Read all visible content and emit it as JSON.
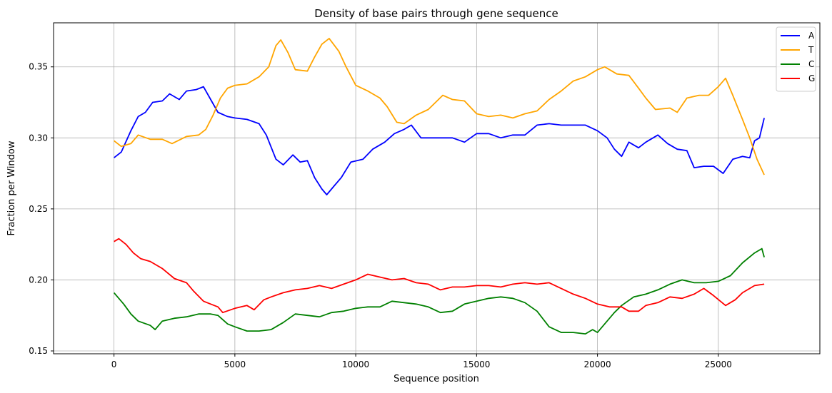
{
  "chart_data": {
    "type": "line",
    "title": "Density of base pairs through gene sequence",
    "xlabel": "Sequence position",
    "ylabel": "Fraction per Window",
    "xlim": [
      -2500,
      29200
    ],
    "ylim": [
      0.148,
      0.381
    ],
    "xticks": [
      0,
      5000,
      10000,
      15000,
      20000,
      25000
    ],
    "xtick_labels": [
      "0",
      "5000",
      "10000",
      "15000",
      "20000",
      "25000"
    ],
    "yticks": [
      0.15,
      0.2,
      0.25,
      0.3,
      0.35
    ],
    "ytick_labels": [
      "0.15",
      "0.20",
      "0.25",
      "0.30",
      "0.35"
    ],
    "grid": true,
    "legend_position": "top-right",
    "series": [
      {
        "name": "A",
        "color": "#0000ff",
        "points": [
          [
            0,
            0.286
          ],
          [
            300,
            0.29
          ],
          [
            700,
            0.305
          ],
          [
            1000,
            0.315
          ],
          [
            1300,
            0.318
          ],
          [
            1600,
            0.325
          ],
          [
            2000,
            0.326
          ],
          [
            2300,
            0.331
          ],
          [
            2700,
            0.327
          ],
          [
            3000,
            0.333
          ],
          [
            3400,
            0.334
          ],
          [
            3700,
            0.336
          ],
          [
            4000,
            0.327
          ],
          [
            4300,
            0.318
          ],
          [
            4700,
            0.315
          ],
          [
            5000,
            0.314
          ],
          [
            5500,
            0.313
          ],
          [
            6000,
            0.31
          ],
          [
            6300,
            0.302
          ],
          [
            6700,
            0.285
          ],
          [
            7000,
            0.281
          ],
          [
            7400,
            0.288
          ],
          [
            7700,
            0.283
          ],
          [
            8000,
            0.284
          ],
          [
            8300,
            0.272
          ],
          [
            8600,
            0.264
          ],
          [
            8800,
            0.26
          ],
          [
            9100,
            0.266
          ],
          [
            9400,
            0.272
          ],
          [
            9800,
            0.283
          ],
          [
            10300,
            0.285
          ],
          [
            10700,
            0.292
          ],
          [
            11200,
            0.297
          ],
          [
            11600,
            0.303
          ],
          [
            12000,
            0.306
          ],
          [
            12300,
            0.309
          ],
          [
            12700,
            0.3
          ],
          [
            13300,
            0.3
          ],
          [
            14000,
            0.3
          ],
          [
            14500,
            0.297
          ],
          [
            15000,
            0.303
          ],
          [
            15500,
            0.303
          ],
          [
            16000,
            0.3
          ],
          [
            16500,
            0.302
          ],
          [
            17000,
            0.302
          ],
          [
            17500,
            0.309
          ],
          [
            18000,
            0.31
          ],
          [
            18500,
            0.309
          ],
          [
            19000,
            0.309
          ],
          [
            19500,
            0.309
          ],
          [
            20000,
            0.305
          ],
          [
            20400,
            0.3
          ],
          [
            20700,
            0.292
          ],
          [
            21000,
            0.287
          ],
          [
            21300,
            0.297
          ],
          [
            21700,
            0.293
          ],
          [
            22000,
            0.297
          ],
          [
            22500,
            0.302
          ],
          [
            22900,
            0.296
          ],
          [
            23300,
            0.292
          ],
          [
            23700,
            0.291
          ],
          [
            24000,
            0.279
          ],
          [
            24400,
            0.28
          ],
          [
            24800,
            0.28
          ],
          [
            25200,
            0.275
          ],
          [
            25600,
            0.285
          ],
          [
            26000,
            0.287
          ],
          [
            26300,
            0.286
          ],
          [
            26500,
            0.298
          ],
          [
            26700,
            0.3
          ],
          [
            26900,
            0.314
          ]
        ]
      },
      {
        "name": "T",
        "color": "#ffa500",
        "points": [
          [
            0,
            0.298
          ],
          [
            300,
            0.294
          ],
          [
            700,
            0.296
          ],
          [
            1000,
            0.302
          ],
          [
            1500,
            0.299
          ],
          [
            2000,
            0.299
          ],
          [
            2400,
            0.296
          ],
          [
            3000,
            0.301
          ],
          [
            3500,
            0.302
          ],
          [
            3800,
            0.306
          ],
          [
            4100,
            0.316
          ],
          [
            4400,
            0.328
          ],
          [
            4700,
            0.335
          ],
          [
            5000,
            0.337
          ],
          [
            5500,
            0.338
          ],
          [
            6000,
            0.343
          ],
          [
            6400,
            0.35
          ],
          [
            6700,
            0.365
          ],
          [
            6900,
            0.369
          ],
          [
            7200,
            0.36
          ],
          [
            7500,
            0.348
          ],
          [
            8000,
            0.347
          ],
          [
            8300,
            0.357
          ],
          [
            8600,
            0.366
          ],
          [
            8900,
            0.37
          ],
          [
            9300,
            0.361
          ],
          [
            9600,
            0.35
          ],
          [
            10000,
            0.337
          ],
          [
            10500,
            0.333
          ],
          [
            11000,
            0.328
          ],
          [
            11300,
            0.322
          ],
          [
            11700,
            0.311
          ],
          [
            12000,
            0.31
          ],
          [
            12500,
            0.316
          ],
          [
            13000,
            0.32
          ],
          [
            13600,
            0.33
          ],
          [
            14000,
            0.327
          ],
          [
            14500,
            0.326
          ],
          [
            15000,
            0.317
          ],
          [
            15500,
            0.315
          ],
          [
            16000,
            0.316
          ],
          [
            16500,
            0.314
          ],
          [
            17000,
            0.317
          ],
          [
            17500,
            0.319
          ],
          [
            18000,
            0.327
          ],
          [
            18500,
            0.333
          ],
          [
            19000,
            0.34
          ],
          [
            19500,
            0.343
          ],
          [
            20000,
            0.348
          ],
          [
            20300,
            0.35
          ],
          [
            20800,
            0.345
          ],
          [
            21300,
            0.344
          ],
          [
            21700,
            0.335
          ],
          [
            22000,
            0.328
          ],
          [
            22400,
            0.32
          ],
          [
            23000,
            0.321
          ],
          [
            23300,
            0.318
          ],
          [
            23700,
            0.328
          ],
          [
            24200,
            0.33
          ],
          [
            24600,
            0.33
          ],
          [
            25000,
            0.336
          ],
          [
            25300,
            0.342
          ],
          [
            25600,
            0.33
          ],
          [
            26000,
            0.313
          ],
          [
            26300,
            0.3
          ],
          [
            26600,
            0.285
          ],
          [
            26900,
            0.274
          ]
        ]
      },
      {
        "name": "C",
        "color": "#008000",
        "points": [
          [
            0,
            0.191
          ],
          [
            400,
            0.183
          ],
          [
            700,
            0.176
          ],
          [
            1000,
            0.171
          ],
          [
            1500,
            0.168
          ],
          [
            1700,
            0.165
          ],
          [
            2000,
            0.171
          ],
          [
            2500,
            0.173
          ],
          [
            3000,
            0.174
          ],
          [
            3500,
            0.176
          ],
          [
            4000,
            0.176
          ],
          [
            4300,
            0.175
          ],
          [
            4700,
            0.169
          ],
          [
            5000,
            0.167
          ],
          [
            5500,
            0.164
          ],
          [
            6000,
            0.164
          ],
          [
            6500,
            0.165
          ],
          [
            7000,
            0.17
          ],
          [
            7500,
            0.176
          ],
          [
            8000,
            0.175
          ],
          [
            8500,
            0.174
          ],
          [
            9000,
            0.177
          ],
          [
            9500,
            0.178
          ],
          [
            10000,
            0.18
          ],
          [
            10500,
            0.181
          ],
          [
            11000,
            0.181
          ],
          [
            11500,
            0.185
          ],
          [
            12000,
            0.184
          ],
          [
            12500,
            0.183
          ],
          [
            13000,
            0.181
          ],
          [
            13500,
            0.177
          ],
          [
            14000,
            0.178
          ],
          [
            14500,
            0.183
          ],
          [
            15000,
            0.185
          ],
          [
            15500,
            0.187
          ],
          [
            16000,
            0.188
          ],
          [
            16500,
            0.187
          ],
          [
            17000,
            0.184
          ],
          [
            17500,
            0.178
          ],
          [
            18000,
            0.167
          ],
          [
            18500,
            0.163
          ],
          [
            19000,
            0.163
          ],
          [
            19500,
            0.162
          ],
          [
            19800,
            0.165
          ],
          [
            20000,
            0.163
          ],
          [
            20300,
            0.169
          ],
          [
            20700,
            0.177
          ],
          [
            21000,
            0.182
          ],
          [
            21500,
            0.188
          ],
          [
            22000,
            0.19
          ],
          [
            22500,
            0.193
          ],
          [
            23000,
            0.197
          ],
          [
            23500,
            0.2
          ],
          [
            24000,
            0.198
          ],
          [
            24500,
            0.198
          ],
          [
            25000,
            0.199
          ],
          [
            25500,
            0.203
          ],
          [
            26000,
            0.212
          ],
          [
            26500,
            0.219
          ],
          [
            26800,
            0.222
          ],
          [
            26900,
            0.216
          ]
        ]
      },
      {
        "name": "G",
        "color": "#ff0000",
        "points": [
          [
            0,
            0.227
          ],
          [
            200,
            0.229
          ],
          [
            500,
            0.225
          ],
          [
            800,
            0.219
          ],
          [
            1100,
            0.215
          ],
          [
            1500,
            0.213
          ],
          [
            2000,
            0.208
          ],
          [
            2500,
            0.201
          ],
          [
            3000,
            0.198
          ],
          [
            3300,
            0.192
          ],
          [
            3700,
            0.185
          ],
          [
            4000,
            0.183
          ],
          [
            4300,
            0.181
          ],
          [
            4500,
            0.177
          ],
          [
            5000,
            0.18
          ],
          [
            5500,
            0.182
          ],
          [
            5800,
            0.179
          ],
          [
            6200,
            0.186
          ],
          [
            6500,
            0.188
          ],
          [
            7000,
            0.191
          ],
          [
            7500,
            0.193
          ],
          [
            8000,
            0.194
          ],
          [
            8500,
            0.196
          ],
          [
            9000,
            0.194
          ],
          [
            9500,
            0.197
          ],
          [
            10000,
            0.2
          ],
          [
            10500,
            0.204
          ],
          [
            11000,
            0.202
          ],
          [
            11500,
            0.2
          ],
          [
            12000,
            0.201
          ],
          [
            12500,
            0.198
          ],
          [
            13000,
            0.197
          ],
          [
            13500,
            0.193
          ],
          [
            14000,
            0.195
          ],
          [
            14500,
            0.195
          ],
          [
            15000,
            0.196
          ],
          [
            15500,
            0.196
          ],
          [
            16000,
            0.195
          ],
          [
            16500,
            0.197
          ],
          [
            17000,
            0.198
          ],
          [
            17500,
            0.197
          ],
          [
            18000,
            0.198
          ],
          [
            18500,
            0.194
          ],
          [
            19000,
            0.19
          ],
          [
            19500,
            0.187
          ],
          [
            20000,
            0.183
          ],
          [
            20500,
            0.181
          ],
          [
            21000,
            0.181
          ],
          [
            21300,
            0.178
          ],
          [
            21700,
            0.178
          ],
          [
            22000,
            0.182
          ],
          [
            22500,
            0.184
          ],
          [
            23000,
            0.188
          ],
          [
            23500,
            0.187
          ],
          [
            24000,
            0.19
          ],
          [
            24400,
            0.194
          ],
          [
            24800,
            0.189
          ],
          [
            25300,
            0.182
          ],
          [
            25700,
            0.186
          ],
          [
            26000,
            0.191
          ],
          [
            26500,
            0.196
          ],
          [
            26900,
            0.197
          ]
        ]
      }
    ]
  }
}
